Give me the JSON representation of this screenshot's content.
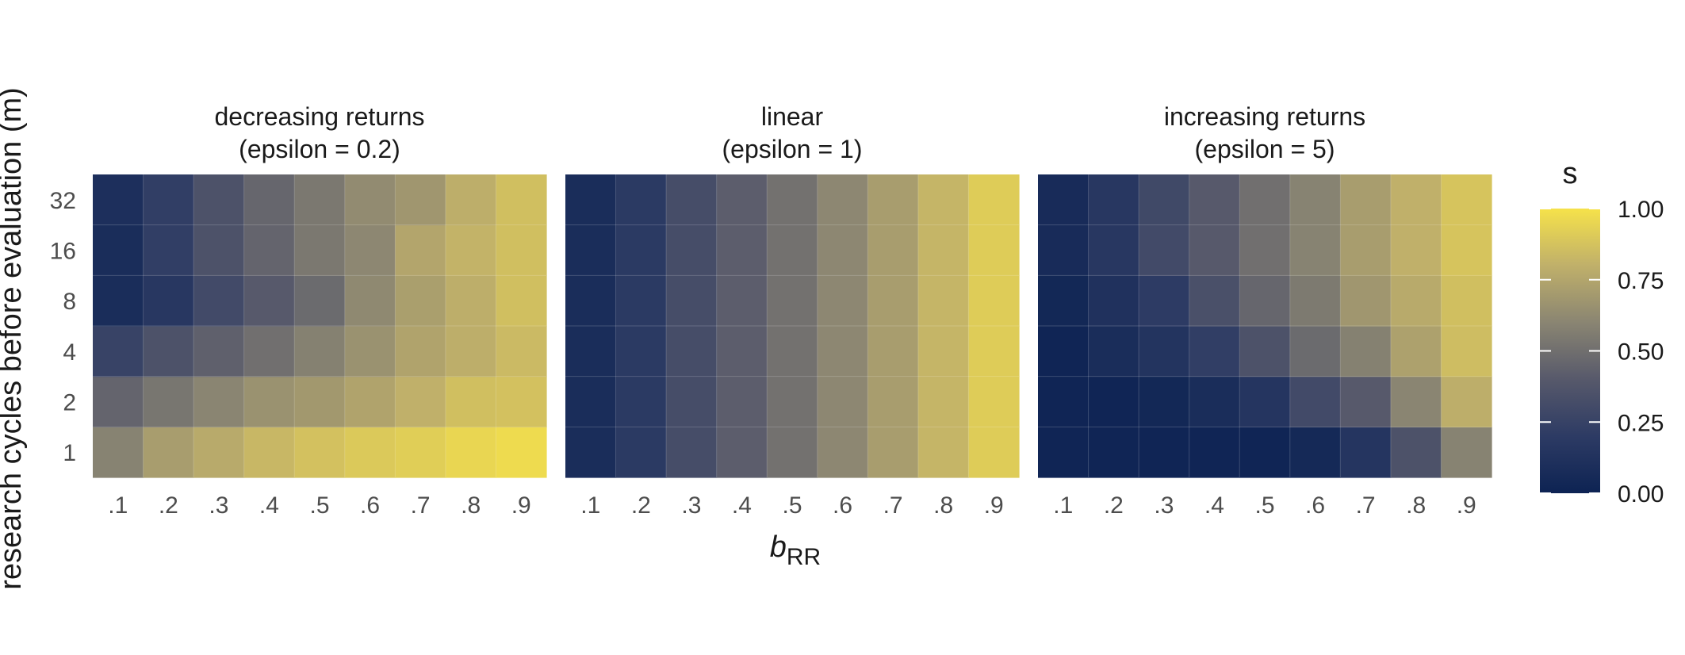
{
  "chart_data": {
    "type": "heatmap",
    "xlabel": "b",
    "xlabel_subscript": "RR",
    "ylabel": "research cycles before evaluation (m)",
    "x_categories": [
      ".1",
      ".2",
      ".3",
      ".4",
      ".5",
      ".6",
      ".7",
      ".8",
      ".9"
    ],
    "y_categories": [
      "1",
      "2",
      "4",
      "8",
      "16",
      "32"
    ],
    "legend": {
      "title": "s",
      "range": [
        0,
        1
      ],
      "ticks": [
        "0.00",
        "0.25",
        "0.50",
        "0.75",
        "1.00"
      ],
      "colors": [
        "#0d2353",
        "#2d3b64",
        "#57596b",
        "#8a8572",
        "#c0b06a",
        "#f6e24a"
      ],
      "placement": "right"
    },
    "panels": [
      {
        "title_line1": "decreasing returns",
        "title_line2": "(epsilon = 0.2)",
        "values": [
          [
            0.59,
            0.71,
            0.77,
            0.83,
            0.87,
            0.9,
            0.92,
            0.95,
            0.97
          ],
          [
            0.45,
            0.53,
            0.6,
            0.66,
            0.69,
            0.74,
            0.8,
            0.86,
            0.87
          ],
          [
            0.25,
            0.35,
            0.43,
            0.5,
            0.58,
            0.66,
            0.74,
            0.79,
            0.84
          ],
          [
            0.08,
            0.17,
            0.3,
            0.4,
            0.48,
            0.62,
            0.72,
            0.79,
            0.86
          ],
          [
            0.08,
            0.22,
            0.35,
            0.45,
            0.54,
            0.61,
            0.75,
            0.81,
            0.86
          ],
          [
            0.1,
            0.22,
            0.35,
            0.46,
            0.54,
            0.63,
            0.68,
            0.79,
            0.86
          ]
        ]
      },
      {
        "title_line1": "linear",
        "title_line2": "(epsilon = 1)",
        "values": [
          [
            0.08,
            0.19,
            0.32,
            0.42,
            0.51,
            0.61,
            0.71,
            0.82,
            0.91
          ],
          [
            0.08,
            0.19,
            0.32,
            0.42,
            0.51,
            0.61,
            0.71,
            0.82,
            0.91
          ],
          [
            0.08,
            0.19,
            0.32,
            0.42,
            0.51,
            0.61,
            0.71,
            0.82,
            0.91
          ],
          [
            0.08,
            0.19,
            0.32,
            0.42,
            0.51,
            0.61,
            0.71,
            0.82,
            0.91
          ],
          [
            0.08,
            0.19,
            0.32,
            0.42,
            0.51,
            0.61,
            0.71,
            0.82,
            0.91
          ],
          [
            0.08,
            0.19,
            0.32,
            0.42,
            0.51,
            0.61,
            0.71,
            0.82,
            0.91
          ]
        ]
      },
      {
        "title_line1": "increasing returns",
        "title_line2": "(epsilon = 5)",
        "values": [
          [
            0.02,
            0.02,
            0.02,
            0.02,
            0.02,
            0.05,
            0.15,
            0.35,
            0.59
          ],
          [
            0.02,
            0.02,
            0.04,
            0.08,
            0.15,
            0.3,
            0.4,
            0.6,
            0.79
          ],
          [
            0.02,
            0.08,
            0.14,
            0.22,
            0.35,
            0.48,
            0.58,
            0.73,
            0.85
          ],
          [
            0.04,
            0.12,
            0.2,
            0.34,
            0.46,
            0.55,
            0.68,
            0.77,
            0.86
          ],
          [
            0.07,
            0.17,
            0.3,
            0.4,
            0.5,
            0.59,
            0.71,
            0.8,
            0.88
          ],
          [
            0.07,
            0.17,
            0.29,
            0.4,
            0.5,
            0.59,
            0.71,
            0.8,
            0.88
          ]
        ]
      }
    ]
  }
}
